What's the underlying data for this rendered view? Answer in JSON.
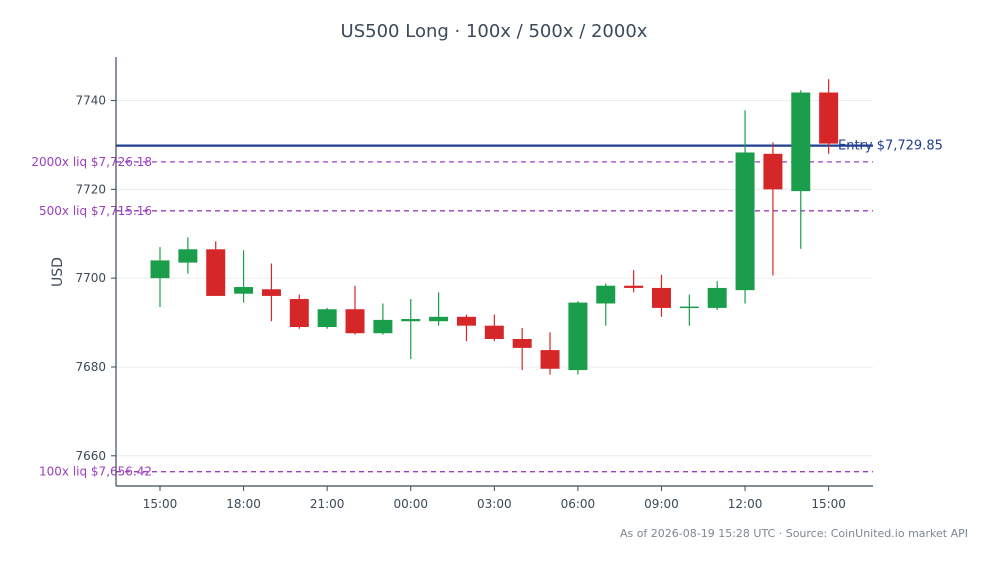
{
  "chart_data": {
    "type": "candlestick",
    "title": "US500 Long · 100x / 500x / 2000x",
    "ylabel": "USD",
    "xlabel": "",
    "ylim": [
      7653.2,
      7749.8
    ],
    "yticks": [
      7660,
      7680,
      7700,
      7720,
      7740
    ],
    "grid": "horizontal",
    "x_ticks": [
      {
        "i": 0,
        "label": "15:00"
      },
      {
        "i": 3,
        "label": "18:00"
      },
      {
        "i": 6,
        "label": "21:00"
      },
      {
        "i": 9,
        "label": "00:00"
      },
      {
        "i": 12,
        "label": "03:00"
      },
      {
        "i": 15,
        "label": "06:00"
      },
      {
        "i": 18,
        "label": "09:00"
      },
      {
        "i": 21,
        "label": "12:00"
      },
      {
        "i": 24,
        "label": "15:00"
      }
    ],
    "candles": [
      {
        "o": 7700.0,
        "h": 7707.0,
        "l": 7693.5,
        "c": 7704.0
      },
      {
        "o": 7703.5,
        "h": 7709.2,
        "l": 7701.0,
        "c": 7706.5
      },
      {
        "o": 7706.5,
        "h": 7708.3,
        "l": 7696.0,
        "c": 7696.0
      },
      {
        "o": 7696.5,
        "h": 7706.3,
        "l": 7694.5,
        "c": 7698.0
      },
      {
        "o": 7697.5,
        "h": 7703.3,
        "l": 7690.3,
        "c": 7696.0
      },
      {
        "o": 7695.3,
        "h": 7696.3,
        "l": 7688.6,
        "c": 7689.0
      },
      {
        "o": 7689.0,
        "h": 7693.3,
        "l": 7688.6,
        "c": 7693.0
      },
      {
        "o": 7693.0,
        "h": 7698.3,
        "l": 7687.3,
        "c": 7687.6
      },
      {
        "o": 7687.6,
        "h": 7694.3,
        "l": 7687.3,
        "c": 7690.6
      },
      {
        "o": 7690.3,
        "h": 7695.3,
        "l": 7681.8,
        "c": 7690.8
      },
      {
        "o": 7690.3,
        "h": 7696.8,
        "l": 7689.3,
        "c": 7691.3
      },
      {
        "o": 7691.3,
        "h": 7691.8,
        "l": 7685.8,
        "c": 7689.3
      },
      {
        "o": 7689.3,
        "h": 7691.8,
        "l": 7685.8,
        "c": 7686.3
      },
      {
        "o": 7686.3,
        "h": 7688.8,
        "l": 7679.3,
        "c": 7684.3
      },
      {
        "o": 7683.8,
        "h": 7687.8,
        "l": 7678.3,
        "c": 7679.6
      },
      {
        "o": 7679.3,
        "h": 7694.8,
        "l": 7678.3,
        "c": 7694.5
      },
      {
        "o": 7694.3,
        "h": 7698.8,
        "l": 7689.3,
        "c": 7698.3
      },
      {
        "o": 7698.3,
        "h": 7701.8,
        "l": 7696.8,
        "c": 7697.8
      },
      {
        "o": 7697.8,
        "h": 7700.8,
        "l": 7691.3,
        "c": 7693.3
      },
      {
        "o": 7693.3,
        "h": 7696.3,
        "l": 7689.3,
        "c": 7693.6
      },
      {
        "o": 7693.3,
        "h": 7699.3,
        "l": 7692.8,
        "c": 7697.8
      },
      {
        "o": 7697.3,
        "h": 7737.8,
        "l": 7694.3,
        "c": 7728.3
      },
      {
        "o": 7728.0,
        "h": 7730.6,
        "l": 7700.6,
        "c": 7720.0
      },
      {
        "o": 7719.6,
        "h": 7742.3,
        "l": 7706.6,
        "c": 7741.8
      },
      {
        "o": 7741.8,
        "h": 7744.8,
        "l": 7728.0,
        "c": 7730.3
      }
    ],
    "reference_lines": [
      {
        "name": "Entry $7,729.85",
        "value": 7729.85,
        "color": "#1f3f8f",
        "style": "solid"
      },
      {
        "name": "2000x liq $7,726.18",
        "value": 7726.18,
        "color": "#9b3fc0",
        "style": "dashed"
      },
      {
        "name": "500x liq $7,715.16",
        "value": 7715.16,
        "color": "#9b3fc0",
        "style": "dashed"
      },
      {
        "name": "100x liq $7,656.42",
        "value": 7656.42,
        "color": "#9b3fc0",
        "style": "dashed"
      }
    ],
    "colors": {
      "up": "#1a9e4b",
      "down": "#d62728",
      "axis": "#3b4a5a",
      "grid": "#ececec"
    }
  },
  "footer": "As of 2026-08-19 15:28 UTC · Source: CoinUnited.io market API"
}
